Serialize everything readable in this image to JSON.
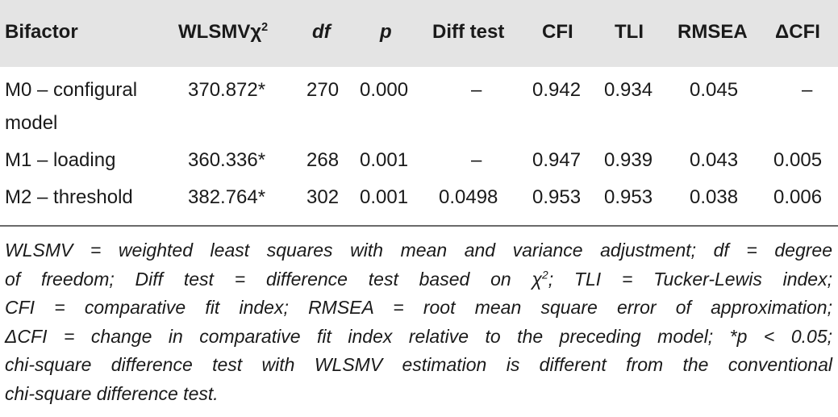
{
  "table": {
    "headers": {
      "model": "Bifactor",
      "chi": "WLSMVχ",
      "chi_sup": "2",
      "df": "df",
      "p": "p",
      "diff": "Diff test",
      "cfi": "CFI",
      "tli": "TLI",
      "rmsea": "RMSEA",
      "dcfi": "ΔCFI"
    },
    "rows": [
      {
        "model_line1": "M0 – configural",
        "model_line2": "model",
        "chi": "370.872*",
        "df": "270",
        "p": "0.000",
        "diff": "–",
        "cfi": "0.942",
        "tli": "0.934",
        "rmsea": "0.045",
        "dcfi": "–"
      },
      {
        "model_line1": "M1 – loading",
        "model_line2": "",
        "chi": "360.336*",
        "df": "268",
        "p": "0.001",
        "diff": "–",
        "cfi": "0.947",
        "tli": "0.939",
        "rmsea": "0.043",
        "dcfi": "0.005"
      },
      {
        "model_line1": "M2 – threshold",
        "model_line2": "",
        "chi": "382.764*",
        "df": "302",
        "p": "0.001",
        "diff": "0.0498",
        "cfi": "0.953",
        "tli": "0.953",
        "rmsea": "0.038",
        "dcfi": "0.006"
      }
    ]
  },
  "footnote": {
    "line1": "WLSMV = weighted least squares with mean and variance adjustment; df = degree",
    "line2_a": "of freedom; Diff test = difference test based on χ",
    "line2_sup": "2",
    "line2_b": "; TLI = Tucker-Lewis index;",
    "line3": "CFI = comparative fit index; RMSEA = root mean square error of approximation;",
    "line4": "ΔCFI = change in comparative fit index relative to the preceding model; *p < 0.05;",
    "line5": "chi-square difference test with WLSMV estimation is different from the conventional",
    "line6": "chi-square difference test."
  }
}
